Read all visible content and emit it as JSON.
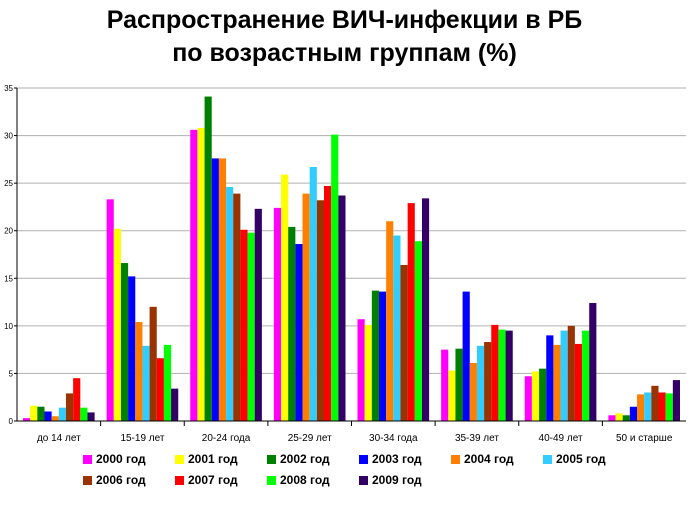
{
  "chart_data": {
    "type": "bar",
    "title": "Распространение ВИЧ-инфекции в РБ",
    "subtitle": "по возрастным группам (%)",
    "ylim": [
      0,
      35
    ],
    "yticks": [
      "0",
      "5",
      "10",
      "15",
      "20",
      "25",
      "30",
      "35"
    ],
    "grid": true,
    "legend_position": "bottom",
    "categories": [
      "до 14 лет",
      "15-19 лет",
      "20-24 года",
      "25-29 лет",
      "30-34 года",
      "35-39 лет",
      "40-49 лет",
      "50 и старше"
    ],
    "series": [
      {
        "name": "2000 год",
        "color": "#ff00ff",
        "values": [
          0.3,
          23.3,
          30.6,
          22.4,
          10.7,
          7.5,
          4.7,
          0.6
        ]
      },
      {
        "name": "2001 год",
        "color": "#ffff00",
        "values": [
          1.6,
          20.2,
          30.8,
          25.9,
          10.1,
          5.3,
          5.2,
          0.8
        ]
      },
      {
        "name": "2002 год",
        "color": "#008000",
        "values": [
          1.5,
          16.6,
          34.1,
          20.4,
          13.7,
          7.6,
          5.5,
          0.6
        ]
      },
      {
        "name": "2003 год",
        "color": "#0000ff",
        "values": [
          1.0,
          15.2,
          27.6,
          18.6,
          13.6,
          13.6,
          9.0,
          1.5
        ]
      },
      {
        "name": "2004 год",
        "color": "#ff8000",
        "values": [
          0.5,
          10.4,
          27.6,
          23.9,
          21.0,
          6.1,
          8.0,
          2.8
        ]
      },
      {
        "name": "2005 год",
        "color": "#33ccff",
        "values": [
          1.4,
          7.9,
          24.6,
          26.7,
          19.5,
          7.9,
          9.5,
          3.0
        ]
      },
      {
        "name": "2006 год",
        "color": "#993300",
        "values": [
          2.9,
          12.0,
          23.9,
          23.2,
          16.4,
          8.3,
          10.0,
          3.7
        ]
      },
      {
        "name": "2007 год",
        "color": "#ff0000",
        "values": [
          4.5,
          6.6,
          20.1,
          24.7,
          22.9,
          10.1,
          8.1,
          3.0
        ]
      },
      {
        "name": "2008 год",
        "color": "#00ff00",
        "values": [
          1.4,
          8.0,
          19.8,
          30.1,
          18.9,
          9.6,
          9.5,
          2.9
        ]
      },
      {
        "name": "2009 год",
        "color": "#330066",
        "values": [
          0.9,
          3.4,
          22.3,
          23.7,
          23.4,
          9.5,
          12.4,
          4.3
        ]
      }
    ]
  }
}
